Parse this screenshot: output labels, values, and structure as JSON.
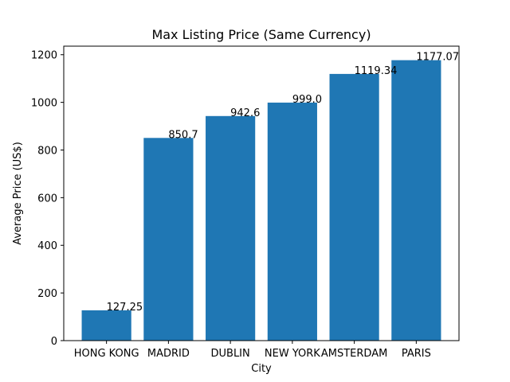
{
  "chart_data": {
    "type": "bar",
    "title": "Max Listing Price (Same Currency)",
    "xlabel": "City",
    "ylabel": "Average Price (US$)",
    "categories": [
      "HONG KONG",
      "MADRID",
      "DUBLIN",
      "NEW YORK",
      "AMSTERDAM",
      "PARIS"
    ],
    "values": [
      127.25,
      850.7,
      942.6,
      999.0,
      1119.34,
      1177.07
    ],
    "value_labels": [
      "127.25",
      "850.7",
      "942.6",
      "999.0",
      "1119.34",
      "1177.07"
    ],
    "ylim": [
      0,
      1235.9
    ],
    "yticks": [
      0,
      200,
      400,
      600,
      800,
      1000,
      1200
    ],
    "bar_color": "#1f77b4",
    "grid": false,
    "legend": "none"
  }
}
